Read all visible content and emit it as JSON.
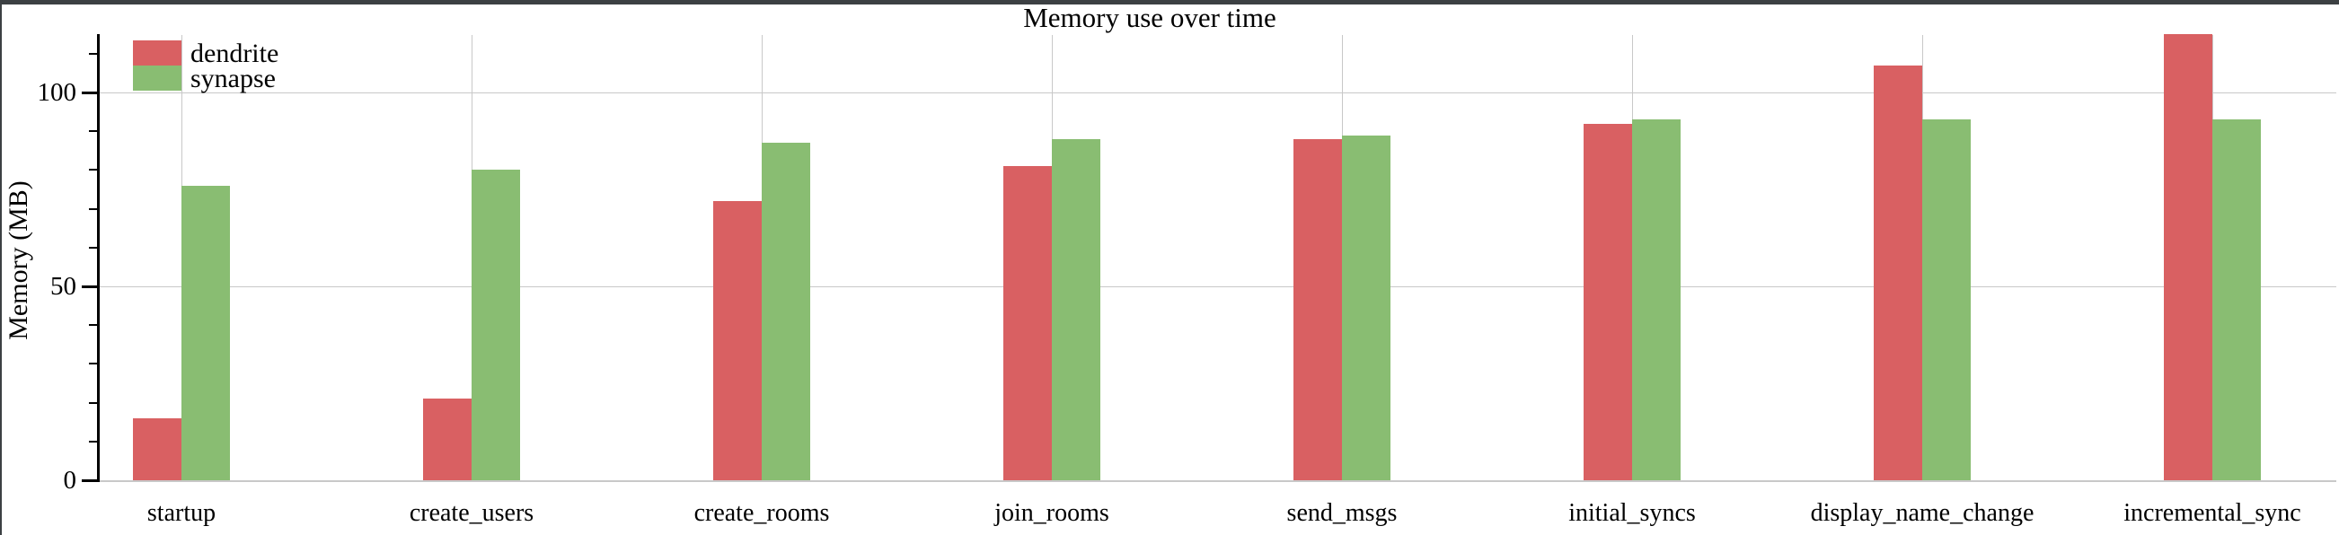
{
  "chart_data": {
    "type": "bar",
    "title": "Memory use over time",
    "ylabel": "Memory (MB)",
    "xlabel": "",
    "categories": [
      "startup",
      "create_users",
      "create_rooms",
      "join_rooms",
      "send_msgs",
      "initial_syncs",
      "display_name_change",
      "incremental_sync"
    ],
    "series": [
      {
        "name": "dendrite",
        "color": "#d96062",
        "values": [
          16,
          21,
          72,
          81,
          88,
          92,
          107,
          115
        ]
      },
      {
        "name": "synapse",
        "color": "#89bd72",
        "values": [
          76,
          80,
          87,
          88,
          89,
          93,
          93,
          93
        ]
      }
    ],
    "ylim": [
      0,
      115
    ],
    "y_major_ticks": [
      0,
      50,
      100
    ],
    "y_minor_tick_step": 10,
    "grid": "on",
    "legend_position": "top-left",
    "grid_color": "#c8c8c8"
  }
}
